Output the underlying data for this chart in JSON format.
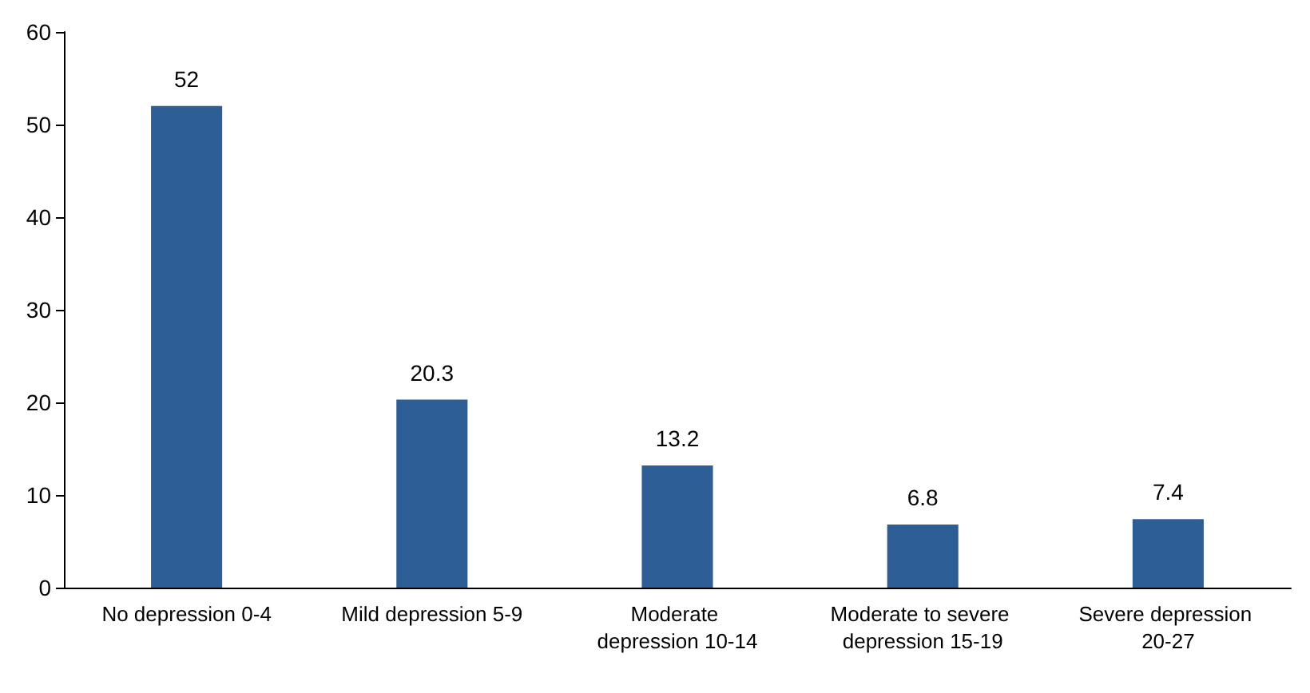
{
  "chart_data": {
    "type": "bar",
    "categories": [
      "No depression 0-4",
      "Mild depression 5-9",
      "Moderate depression 10-14",
      "Moderate to severe depression 15-19",
      "Severe depression 20-27"
    ],
    "values": [
      52,
      20.3,
      13.2,
      6.8,
      7.4
    ],
    "color": "#2e5e96",
    "ylim": [
      0,
      60
    ],
    "yticks": [
      0,
      10,
      20,
      30,
      40,
      50,
      60
    ],
    "data_labels": true,
    "grid": false
  }
}
